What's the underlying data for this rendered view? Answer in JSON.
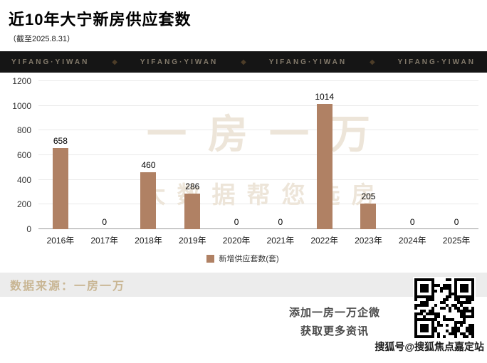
{
  "header": {
    "title": "近10年大宁新房供应套数",
    "subtitle": "（截至2025.8.31）"
  },
  "banner": {
    "brand_text": "YIFANG·YIWAN",
    "separator": "◆",
    "repeat": 4,
    "background": "#151515",
    "text_color": "#837a6b"
  },
  "chart_data": {
    "type": "bar",
    "title": "近10年大宁新房供应套数",
    "categories": [
      "2016年",
      "2017年",
      "2018年",
      "2019年",
      "2020年",
      "2021年",
      "2022年",
      "2023年",
      "2024年",
      "2025年"
    ],
    "values": [
      658,
      0,
      460,
      286,
      0,
      0,
      1014,
      205,
      0,
      0
    ],
    "ylim": [
      0,
      1200
    ],
    "ytick_step": 200,
    "xlabel": "",
    "ylabel": "",
    "legend": "新增供应套数(套)",
    "legend_position": "bottom",
    "grid": true,
    "bar_color": "#b08164"
  },
  "watermark": {
    "line1": "一房一万",
    "line2": "大数据帮您选房"
  },
  "footer": {
    "source": "数据来源：一房一万",
    "cta_line1": "添加一房一万企微",
    "cta_line2": "获取更多资讯",
    "credit": "搜狐号@搜狐焦点嘉定站"
  }
}
